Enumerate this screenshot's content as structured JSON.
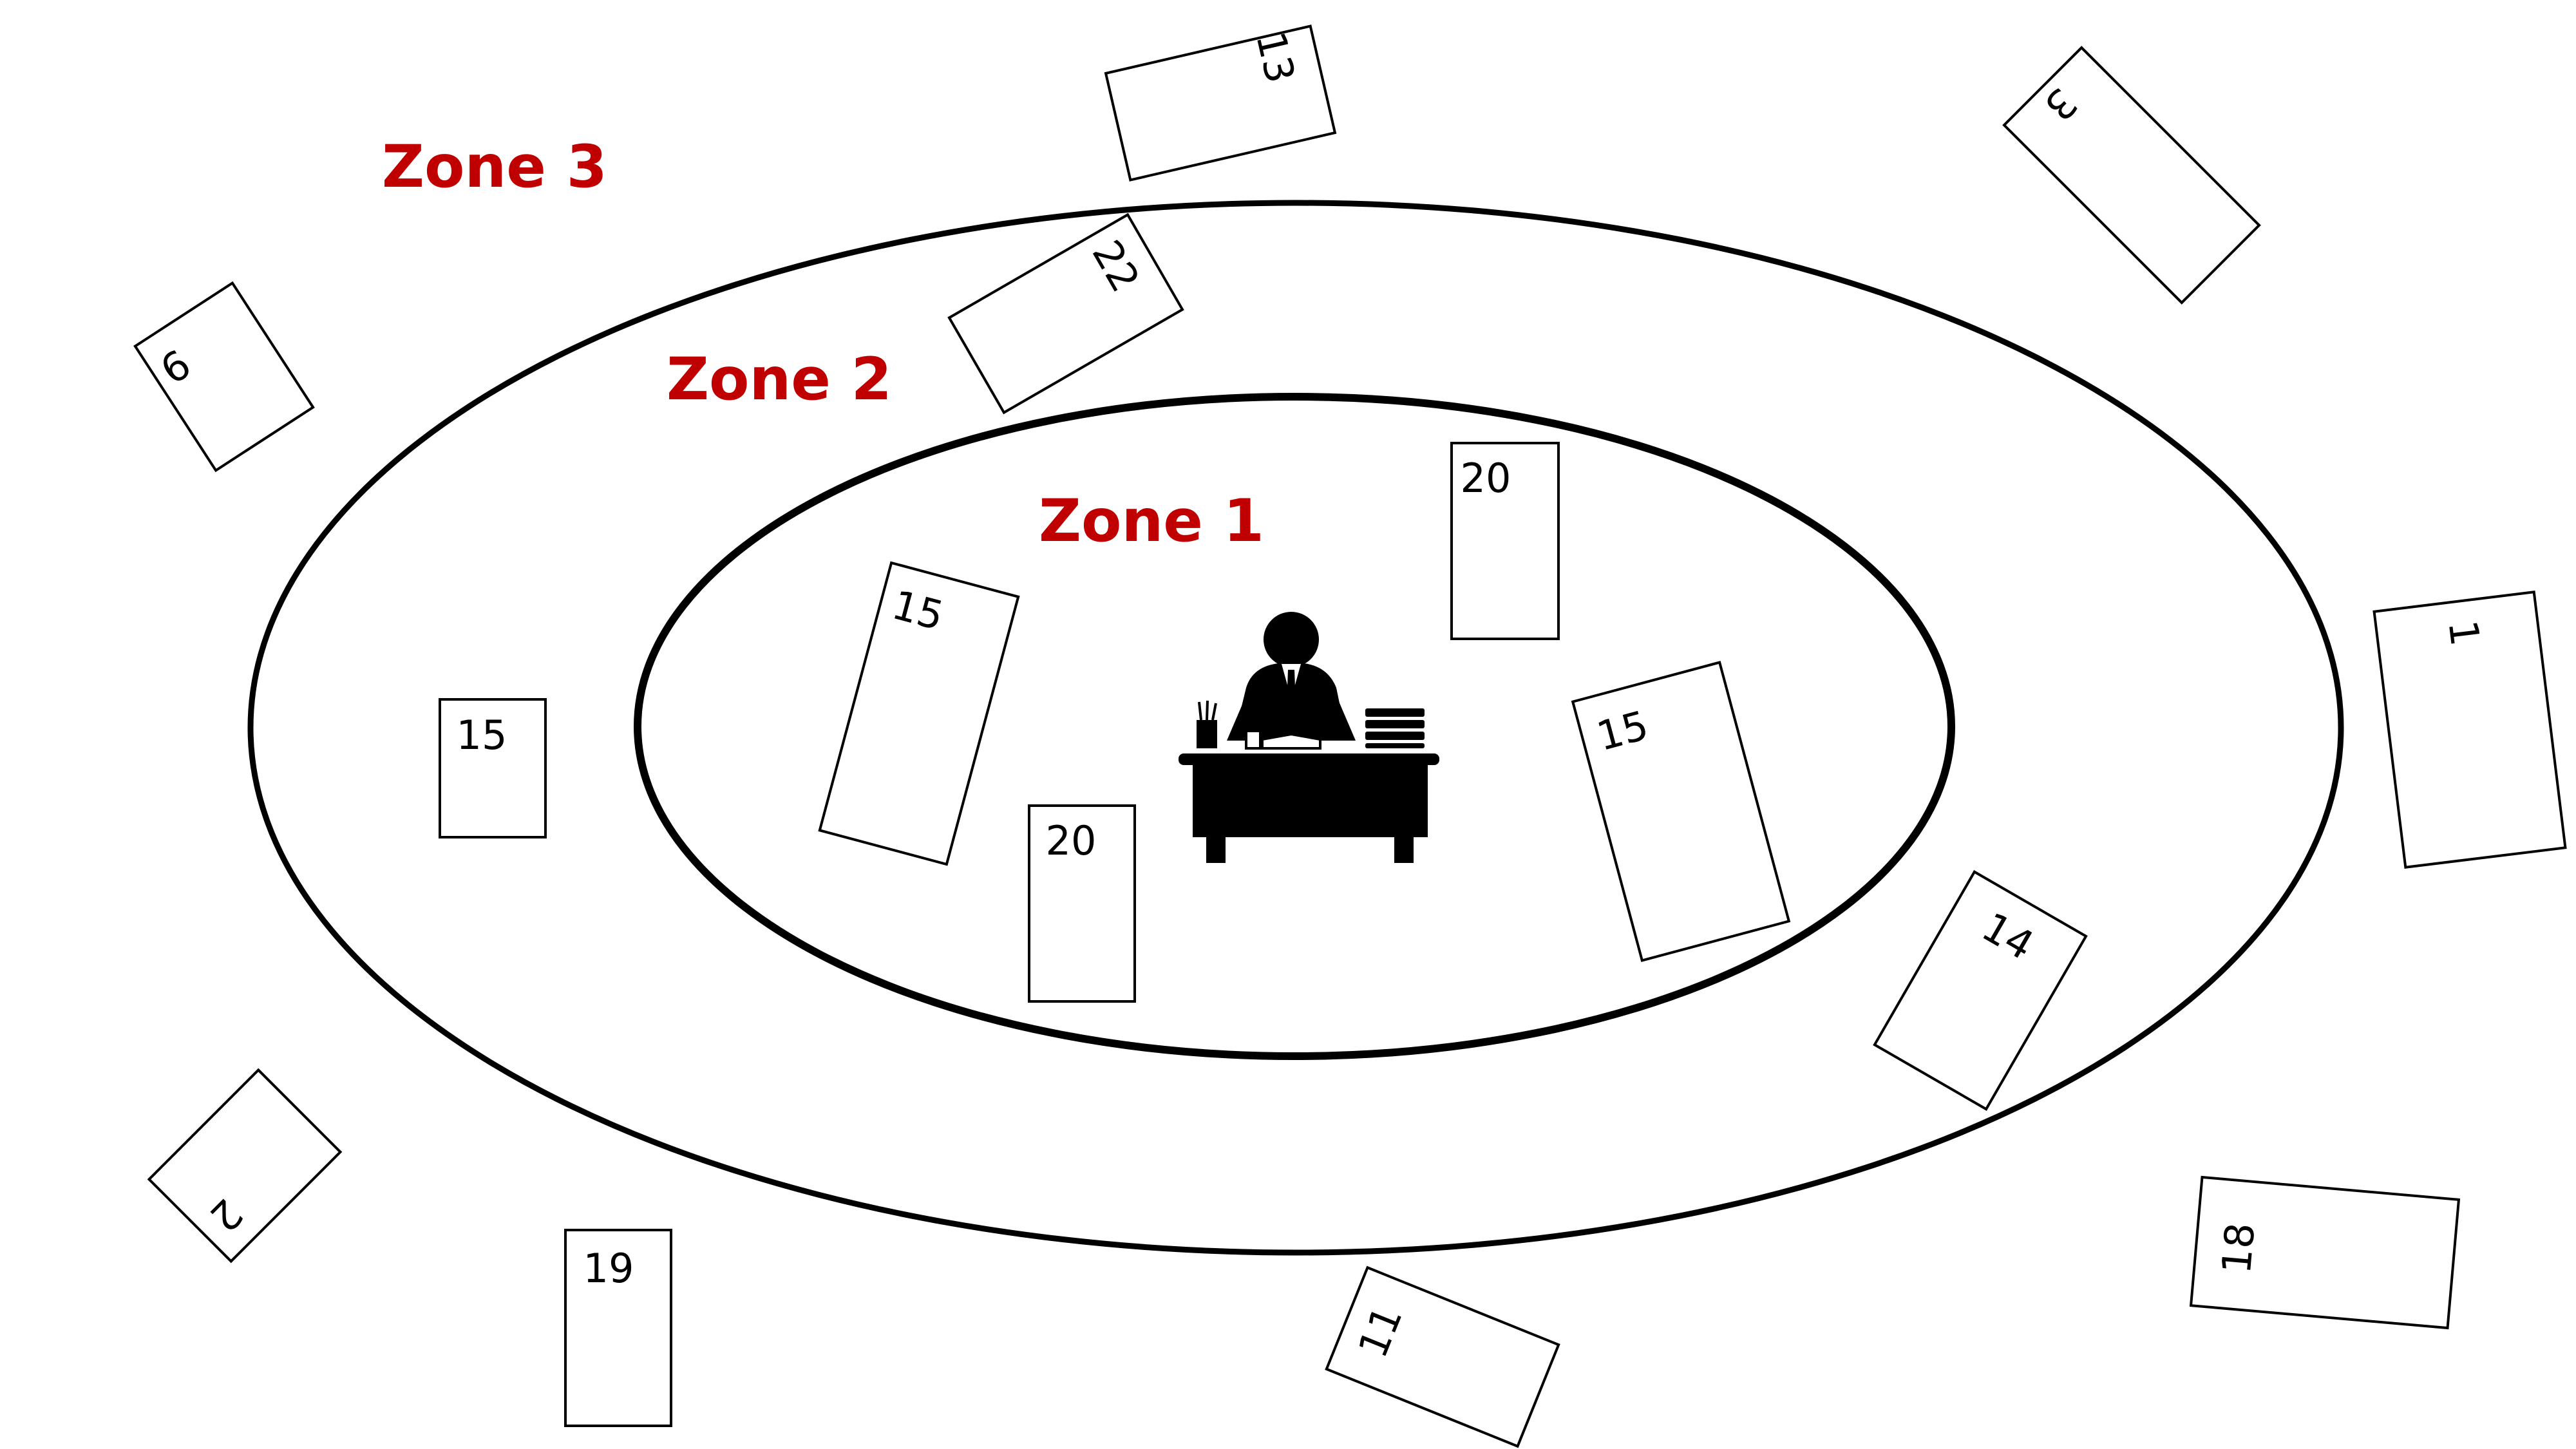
{
  "colors": {
    "zone_label": "#C00000",
    "line": "#000000",
    "card_fill": "#FFFFFF",
    "figure": "#000000"
  },
  "zones": [
    {
      "id": "zone-3",
      "label": "Zone 3"
    },
    {
      "id": "zone-2",
      "label": "Zone 2"
    },
    {
      "id": "zone-1",
      "label": "Zone 1"
    }
  ],
  "center_icon": "person-at-desk-icon",
  "cards": [
    {
      "id": "card-13",
      "label": "13",
      "zone": 3
    },
    {
      "id": "card-3",
      "label": "3",
      "zone": 3
    },
    {
      "id": "card-9",
      "label": "9",
      "zone": 3
    },
    {
      "id": "card-22",
      "label": "22",
      "zone": 2
    },
    {
      "id": "card-20-top",
      "label": "20",
      "zone": 1
    },
    {
      "id": "card-15-left-inner",
      "label": "15",
      "zone": 1
    },
    {
      "id": "card-15-outer-left",
      "label": "15",
      "zone": 2
    },
    {
      "id": "card-20-bottom",
      "label": "20",
      "zone": 1
    },
    {
      "id": "card-15-right",
      "label": "15",
      "zone": 1
    },
    {
      "id": "card-1",
      "label": "1",
      "zone": 3
    },
    {
      "id": "card-14",
      "label": "14",
      "zone": 2
    },
    {
      "id": "card-2",
      "label": "2",
      "zone": 3
    },
    {
      "id": "card-19",
      "label": "19",
      "zone": 3
    },
    {
      "id": "card-11",
      "label": "11",
      "zone": 3
    },
    {
      "id": "card-18",
      "label": "18",
      "zone": 3
    }
  ]
}
